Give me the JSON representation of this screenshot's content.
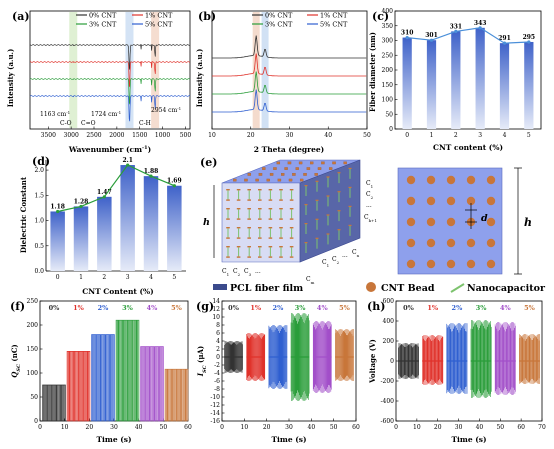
{
  "colors": {
    "cnt0": "#333333",
    "cnt1": "#e0322b",
    "cnt3": "#2a9d3a",
    "cnt5": "#2f5fd0",
    "fiber": "#7a8ee6",
    "bead": "#c8763a",
    "nanocap": "#7dc36e",
    "bar_top": "#3f62c9",
    "bar_bottom": "#dfe6f7",
    "legend_dark": "#3b4a8c"
  },
  "chart_data": [
    {
      "id": "a",
      "panel_label": "(a)",
      "type": "line",
      "xlabel": "Wavenumber (cm",
      "xlabel_sup": "-1",
      "xlabel_close": ")",
      "ylabel": "Intensity (a.u.)",
      "xlim": [
        3900,
        400
      ],
      "x_ticks": [
        "500",
        "1000",
        "1500",
        "2000",
        "2500",
        "3000",
        "3500"
      ],
      "legend": [
        "0% CNT",
        "1% CNT",
        "3% CNT",
        "5% CNT"
      ],
      "highlight_bands": [
        1163,
        1724,
        2954
      ],
      "annotations": [
        "1163 cm",
        "C-O",
        "C=O",
        "1724 cm",
        "C-H",
        "2954 cm"
      ],
      "ann_sup": "-1",
      "series": [
        {
          "name": "0% CNT",
          "offset": 3
        },
        {
          "name": "1% CNT",
          "offset": 2
        },
        {
          "name": "3% CNT",
          "offset": 1
        },
        {
          "name": "5% CNT",
          "offset": 0
        }
      ]
    },
    {
      "id": "b",
      "panel_label": "(b)",
      "type": "line",
      "xlabel": "2 Theta (degree)",
      "ylabel": "Intensity (a.u.)",
      "xlim": [
        10,
        50
      ],
      "x_ticks": [
        "10",
        "20",
        "30",
        "40",
        "50"
      ],
      "legend": [
        "0% CNT",
        "1% CNT",
        "3% CNT",
        "5% CNT"
      ],
      "peaks": [
        21.4,
        23.7
      ],
      "highlight_bands": [
        21.4,
        23.7
      ]
    },
    {
      "id": "c",
      "panel_label": "(c)",
      "type": "bar",
      "xlabel": "CNT content (%)",
      "ylabel": "Fiber diameter (nm)",
      "categories": [
        "0",
        "1",
        "2",
        "3",
        "4",
        "5"
      ],
      "values": [
        310,
        301,
        331,
        343,
        291,
        295
      ],
      "labels": [
        "310",
        "301",
        "331",
        "343",
        "291",
        "295"
      ],
      "ylim": [
        0,
        400
      ],
      "y_ticks": [
        "0",
        "50",
        "100",
        "150",
        "200",
        "250",
        "300",
        "350",
        "400"
      ]
    },
    {
      "id": "d",
      "panel_label": "(d)",
      "type": "bar",
      "xlabel": "CNT Content (%)",
      "ylabel": "Dielectric Constant",
      "categories": [
        "0",
        "1",
        "2",
        "3",
        "4",
        "5"
      ],
      "values": [
        1.18,
        1.28,
        1.47,
        2.1,
        1.88,
        1.69
      ],
      "labels": [
        "1.18",
        "1.28",
        "1.47",
        "2.1",
        "1.88",
        "1.69"
      ],
      "ylim": [
        0,
        2.2
      ],
      "y_ticks": [
        "0.0",
        "0.5",
        "1.0",
        "1.5",
        "2.0"
      ]
    },
    {
      "id": "f",
      "panel_label": "(f)",
      "type": "line",
      "xlabel": "Time (s)",
      "ylabel_main": "Q",
      "ylabel_sub": "SC",
      "ylabel_unit": " (nC)",
      "xlim": [
        0,
        60
      ],
      "ylim": [
        0,
        250
      ],
      "x_ticks": [
        "0",
        "10",
        "20",
        "30",
        "40",
        "50",
        "60"
      ],
      "y_ticks": [
        "0",
        "50",
        "100",
        "150",
        "200",
        "250"
      ],
      "segments": [
        {
          "label": "0%",
          "peak": 75
        },
        {
          "label": "1%",
          "peak": 145
        },
        {
          "label": "2%",
          "peak": 180
        },
        {
          "label": "3%",
          "peak": 210
        },
        {
          "label": "4%",
          "peak": 155
        },
        {
          "label": "5%",
          "peak": 108
        }
      ]
    },
    {
      "id": "g",
      "panel_label": "(g)",
      "type": "line",
      "xlabel": "Time (s)",
      "ylabel_main": "I",
      "ylabel_sub": "SC",
      "ylabel_unit": " (μA)",
      "xlim": [
        0,
        60
      ],
      "ylim": [
        -16,
        14
      ],
      "x_ticks": [
        "0",
        "10",
        "20",
        "30",
        "40",
        "50",
        "60"
      ],
      "y_ticks": [
        "-16",
        "-14",
        "-12",
        "-10",
        "-8",
        "-6",
        "-4",
        "-2",
        "0",
        "2",
        "4",
        "6",
        "8",
        "10",
        "12",
        "14"
      ],
      "segments": [
        {
          "label": "0%",
          "max": 4,
          "min": -4
        },
        {
          "label": "1%",
          "max": 6,
          "min": -6
        },
        {
          "label": "2%",
          "max": 8,
          "min": -8
        },
        {
          "label": "3%",
          "max": 11,
          "min": -11
        },
        {
          "label": "4%",
          "max": 9,
          "min": -9
        },
        {
          "label": "5%",
          "max": 7,
          "min": -6
        }
      ]
    },
    {
      "id": "h",
      "panel_label": "(h)",
      "type": "line",
      "xlabel": "Time (s)",
      "ylabel": "Voltage (V)",
      "xlim": [
        0,
        70
      ],
      "ylim": [
        -600,
        600
      ],
      "x_ticks": [
        "0",
        "10",
        "20",
        "30",
        "40",
        "50",
        "60",
        "70"
      ],
      "y_ticks": [
        "-600",
        "-400",
        "-200",
        "0",
        "200",
        "400",
        "600"
      ],
      "segments": [
        {
          "label": "0%",
          "max": 180,
          "min": -180
        },
        {
          "label": "1%",
          "max": 260,
          "min": -240
        },
        {
          "label": "2%",
          "max": 380,
          "min": -330
        },
        {
          "label": "3%",
          "max": 410,
          "min": -370
        },
        {
          "label": "4%",
          "max": 390,
          "min": -340
        },
        {
          "label": "5%",
          "max": 270,
          "min": -230
        }
      ]
    }
  ],
  "schematic": {
    "panel_label": "(e)",
    "dim_h": "h",
    "dim_d": "d",
    "cap_labels_right": [
      "C",
      "C",
      "...",
      "C"
    ],
    "cap_subs_right": [
      "1",
      "2",
      "",
      "k+1"
    ],
    "cap_labels_bottom": [
      "C",
      "C",
      "C",
      "..."
    ],
    "cap_subs_bottom": [
      "1",
      "2",
      "3",
      ""
    ],
    "cap_m": "C",
    "cap_m_sub": "m",
    "cap_labels_side": [
      "C",
      "C",
      "...",
      "C"
    ],
    "cap_subs_side": [
      "1",
      "2",
      "",
      "n"
    ],
    "legend": [
      "PCL fiber film",
      "CNT Bead",
      "Nanocapacitor"
    ]
  }
}
